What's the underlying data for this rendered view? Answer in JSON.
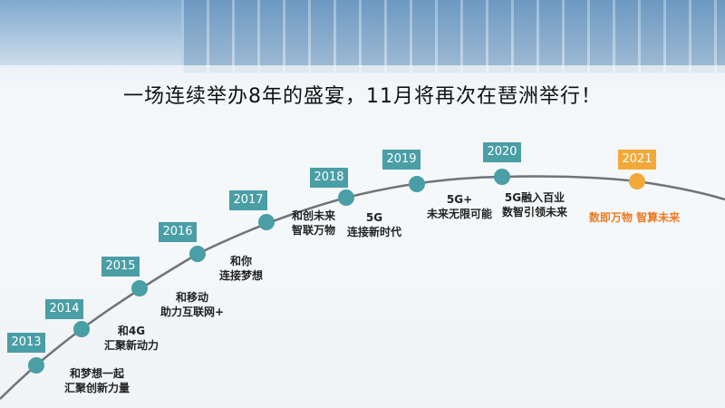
{
  "title": "一场连续举办8年的盛宴，11月将再次在琶洲举行！",
  "colors": {
    "milestone": "#4a9ea6",
    "highlight": "#f3a93a",
    "highlight_text": "#ec7a22"
  },
  "milestones": [
    {
      "year": "2013",
      "line1": "和梦想一起",
      "line2": "汇聚创新力量"
    },
    {
      "year": "2014",
      "line1": "和4G",
      "line2": "汇聚新动力"
    },
    {
      "year": "2015",
      "line1": "和移动",
      "line2": "助力互联网+"
    },
    {
      "year": "2016",
      "line1": "和你",
      "line2": "连接梦想"
    },
    {
      "year": "2017",
      "line1": "和创未来",
      "line2": "智联万物"
    },
    {
      "year": "2018",
      "line1": "5G",
      "line2": "连接新时代"
    },
    {
      "year": "2019",
      "line1": "5G+",
      "line2": "未来无限可能"
    },
    {
      "year": "2020",
      "line1": "5G融入百业",
      "line2": "数智引领未来"
    },
    {
      "year": "2021",
      "line1": "数即万物 智算未来",
      "line2": ""
    }
  ]
}
